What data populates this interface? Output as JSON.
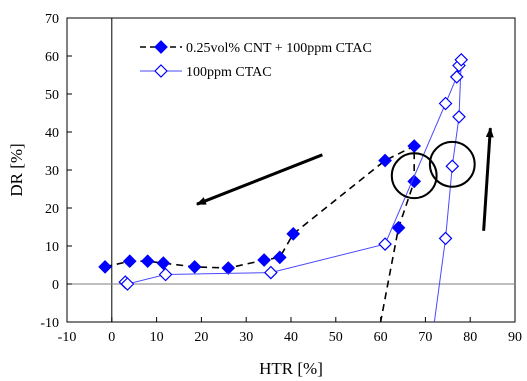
{
  "chart_data": {
    "type": "scatter",
    "xlabel": "HTR [%]",
    "ylabel": "DR [%]",
    "xlim": [
      -10,
      90
    ],
    "ylim": [
      -10,
      70
    ],
    "xticks": [
      "-10",
      "0",
      "10",
      "20",
      "30",
      "40",
      "50",
      "60",
      "70",
      "80",
      "90"
    ],
    "yticks": [
      "-10",
      "0",
      "10",
      "20",
      "30",
      "40",
      "50",
      "60",
      "70"
    ],
    "grid": false,
    "legend_position": "top-left",
    "series": [
      {
        "name": "0.25vol% CNT + 100ppm CTAC",
        "marker": "filled-diamond",
        "line": "dashed",
        "color": "#0000ff",
        "line_color": "#000000",
        "points": [
          [
            -1.5,
            4.5
          ],
          [
            4,
            6
          ],
          [
            8,
            6
          ],
          [
            11.5,
            5.5
          ],
          [
            18.5,
            4.5
          ],
          [
            26,
            4.2
          ],
          [
            34,
            6.3
          ],
          [
            37.5,
            7
          ],
          [
            40.5,
            13.2
          ],
          [
            61,
            32.5
          ],
          [
            67.5,
            36.3
          ],
          [
            67.5,
            27
          ],
          [
            64,
            14.8
          ],
          [
            60,
            -10
          ]
        ]
      },
      {
        "name": "100ppm CTAC",
        "marker": "open-diamond",
        "line": "solid",
        "color": "#0000ff",
        "line_color": "#4a4aff",
        "points": [
          [
            3,
            0.5
          ],
          [
            3.5,
            0
          ],
          [
            12,
            2.5
          ],
          [
            35.5,
            3
          ],
          [
            61,
            10.5
          ],
          [
            74.5,
            47.5
          ],
          [
            77,
            54.5
          ],
          [
            77.5,
            57.5
          ],
          [
            78,
            59
          ],
          [
            77.5,
            44
          ],
          [
            76,
            31
          ],
          [
            74.5,
            12
          ],
          [
            72,
            -10
          ]
        ]
      }
    ],
    "annotations": [
      {
        "type": "arrow",
        "from": [
          47,
          34
        ],
        "to": [
          19,
          21
        ],
        "color": "#000000"
      },
      {
        "type": "arrow",
        "from": [
          83,
          14
        ],
        "to": [
          84.5,
          41
        ],
        "color": "#000000"
      },
      {
        "type": "circle",
        "center": [
          67.5,
          28.5
        ],
        "radius": 5,
        "color": "#000000"
      },
      {
        "type": "circle",
        "center": [
          76,
          31.5
        ],
        "radius": 5,
        "color": "#000000"
      }
    ]
  }
}
